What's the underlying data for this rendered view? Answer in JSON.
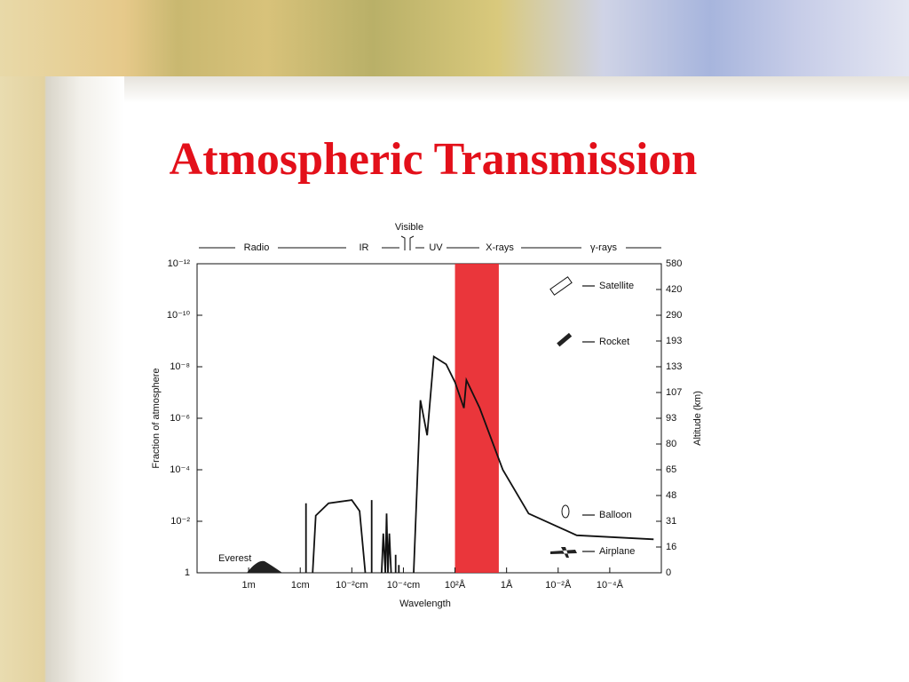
{
  "chart_data": {
    "type": "line",
    "title": "Atmospheric Transmission",
    "xlabel": "Wavelength",
    "ylabel": "Fraction of atmosphere",
    "y2label": "Altitude (km)",
    "log_x": true,
    "log_y": true,
    "xlim": [
      100,
      1e-16
    ],
    "ylim": [
      1,
      1e-12
    ],
    "xticks": [
      {
        "value": 1,
        "label": "1m"
      },
      {
        "value": 0.01,
        "label": "1cm"
      },
      {
        "value": 0.0001,
        "label": "10⁻²cm"
      },
      {
        "value": 1e-06,
        "label": "10⁻⁴cm"
      },
      {
        "value": 1e-08,
        "label": "10²Å"
      },
      {
        "value": 1e-10,
        "label": "1Å"
      },
      {
        "value": 1e-12,
        "label": "10⁻²Å"
      },
      {
        "value": 1e-14,
        "label": "10⁻⁴Å"
      }
    ],
    "yticks": [
      {
        "value": 1e-12,
        "label": "10⁻¹²"
      },
      {
        "value": 1e-10,
        "label": "10⁻¹⁰"
      },
      {
        "value": 1e-08,
        "label": "10⁻⁸"
      },
      {
        "value": 1e-06,
        "label": "10⁻⁶"
      },
      {
        "value": 0.0001,
        "label": "10⁻⁴"
      },
      {
        "value": 0.01,
        "label": "10⁻²"
      },
      1
    ],
    "y2ticks": [
      580,
      420,
      290,
      193,
      133,
      107,
      93,
      80,
      65,
      48,
      31,
      16,
      0
    ],
    "regions": [
      "Radio",
      "IR",
      "Visible",
      "UV",
      "X-rays",
      "γ-rays"
    ],
    "platforms": [
      "Satellite",
      "Rocket",
      "Balloon",
      "Airplane"
    ],
    "landmark": "Everest",
    "highlight": {
      "x": [
        1e-08,
        2e-10
      ],
      "color": "#e8252a"
    },
    "series": [
      {
        "color": "#111111",
        "x": [
          0.006,
          0.006,
          null,
          0.0033,
          0.0025,
          0.0008,
          0.0001,
          5e-05,
          3e-05,
          null,
          1.7e-05,
          1.7e-05,
          null,
          7e-06,
          6e-06,
          5e-06,
          4.5e-06,
          4e-06,
          3.5e-06,
          3e-06,
          null,
          2e-06,
          2e-06,
          null,
          1.5e-06,
          1.5e-06,
          null,
          4e-07,
          2.2e-07,
          1.2e-07,
          6.6e-08,
          2.2e-08,
          1e-08,
          4.5e-09,
          3.6e-09,
          1.1e-09,
          1.4e-10,
          1.4e-11,
          1.9e-13,
          2e-16
        ],
        "values": [
          1,
          0.002,
          null,
          1,
          0.006,
          0.002,
          0.0015,
          0.004,
          1,
          null,
          1,
          0.0015,
          null,
          1,
          0.03,
          1,
          0.005,
          1,
          0.03,
          1,
          null,
          1,
          0.2,
          null,
          1,
          0.5,
          null,
          1,
          2e-07,
          4.6e-06,
          4e-09,
          8e-09,
          4e-08,
          4e-07,
          3.3e-08,
          4e-07,
          0.0001,
          0.005,
          0.035,
          0.05
        ]
      }
    ]
  }
}
